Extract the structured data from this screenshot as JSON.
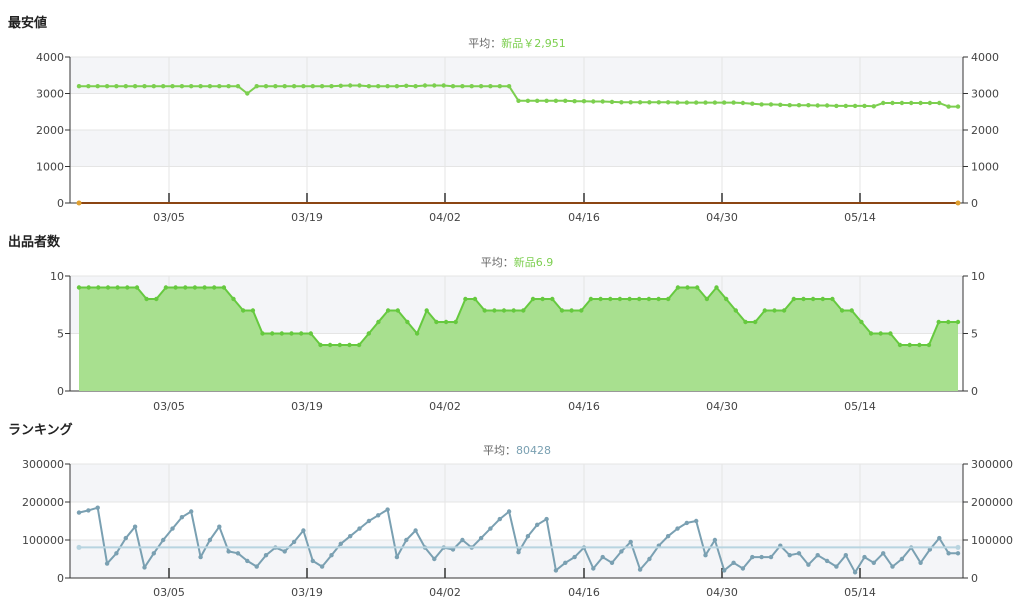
{
  "colors": {
    "price_line": "#7ccf4f",
    "price_zero_line": "#8b4513",
    "price_zero_marker": "#e0a030",
    "sellers_line": "#66c93f",
    "sellers_fill": "#a8e08f",
    "rank_line": "#7aa0b2",
    "rank_avg_line": "#b8d4e0",
    "band": "#f4f5f8",
    "grid": "#e5e5e5",
    "avg_value_green": "#7ccf4f",
    "avg_value_blue": "#7aa0b2"
  },
  "x_tick_labels": [
    "03/05",
    "03/19",
    "04/02",
    "04/16",
    "04/30",
    "05/14"
  ],
  "chart_data": [
    {
      "id": "price",
      "type": "line",
      "title": "最安値",
      "avg_prefix": "平均：",
      "avg_value": "新品￥2,951",
      "yticks": [
        "4000",
        "3000",
        "2000",
        "1000",
        "0"
      ],
      "ylim": [
        0,
        4000
      ],
      "x_range": [
        0,
        87
      ],
      "grid": true,
      "series": [
        {
          "values": [
            3200,
            3200,
            3200,
            3200,
            3200,
            3200,
            3200,
            3200,
            3200,
            3200,
            3200,
            3200,
            3200,
            3200,
            3200,
            3200,
            3200,
            3200,
            3000,
            3200,
            3200,
            3200,
            3200,
            3200,
            3200,
            3200,
            3200,
            3200,
            3210,
            3220,
            3220,
            3200,
            3200,
            3200,
            3200,
            3210,
            3200,
            3220,
            3220,
            3220,
            3200,
            3200,
            3200,
            3200,
            3200,
            3200,
            3200,
            2800,
            2800,
            2800,
            2800,
            2800,
            2800,
            2790,
            2790,
            2780,
            2780,
            2770,
            2760,
            2760,
            2760,
            2760,
            2760,
            2760,
            2750,
            2750,
            2750,
            2750,
            2750,
            2750,
            2750,
            2740,
            2720,
            2700,
            2700,
            2690,
            2680,
            2680,
            2680,
            2670,
            2670,
            2660,
            2660,
            2660,
            2660,
            2650,
            2740,
            2740,
            2740,
            2740,
            2740,
            2740,
            2740,
            2640,
            2640
          ]
        },
        {
          "values": [
            0,
            0
          ]
        }
      ]
    },
    {
      "id": "sellers",
      "type": "area",
      "title": "出品者数",
      "avg_prefix": "平均：",
      "avg_value": "新品6.9",
      "yticks": [
        "10",
        "5",
        "0"
      ],
      "ylim": [
        0,
        10
      ],
      "x_range": [
        0,
        87
      ],
      "grid": true,
      "series": [
        {
          "values": [
            9,
            9,
            9,
            9,
            9,
            9,
            9,
            8,
            8,
            9,
            9,
            9,
            9,
            9,
            9,
            9,
            8,
            7,
            7,
            5,
            5,
            5,
            5,
            5,
            5,
            4,
            4,
            4,
            4,
            4,
            5,
            6,
            7,
            7,
            6,
            5,
            7,
            6,
            6,
            6,
            8,
            8,
            7,
            7,
            7,
            7,
            7,
            8,
            8,
            8,
            7,
            7,
            7,
            8,
            8,
            8,
            8,
            8,
            8,
            8,
            8,
            8,
            9,
            9,
            9,
            8,
            9,
            8,
            7,
            6,
            6,
            7,
            7,
            7,
            8,
            8,
            8,
            8,
            8,
            7,
            7,
            6,
            5,
            5,
            5,
            4,
            4,
            4,
            4,
            6,
            6,
            6
          ]
        }
      ]
    },
    {
      "id": "ranking",
      "type": "line",
      "title": "ランキング",
      "avg_prefix": "平均：",
      "avg_value": "80428",
      "avg_line_value": 80428,
      "yticks": [
        "300000",
        "200000",
        "100000",
        "0"
      ],
      "ylim": [
        0,
        300000
      ],
      "x_range": [
        0,
        87
      ],
      "grid": true,
      "series": [
        {
          "values": [
            172000,
            178000,
            185000,
            38000,
            65000,
            105000,
            135000,
            28000,
            65000,
            100000,
            130000,
            160000,
            175000,
            55000,
            100000,
            135000,
            70000,
            65000,
            45000,
            30000,
            60000,
            80000,
            70000,
            95000,
            125000,
            45000,
            30000,
            60000,
            90000,
            110000,
            130000,
            150000,
            165000,
            180000,
            55000,
            100000,
            125000,
            80000,
            50000,
            80000,
            75000,
            100000,
            80000,
            105000,
            130000,
            155000,
            175000,
            68000,
            110000,
            140000,
            155000,
            20000,
            40000,
            55000,
            80000,
            25000,
            55000,
            40000,
            70000,
            95000,
            22000,
            50000,
            85000,
            110000,
            130000,
            145000,
            150000,
            60000,
            100000,
            20000,
            40000,
            25000,
            55000,
            55000,
            55000,
            85000,
            60000,
            65000,
            35000,
            60000,
            45000,
            30000,
            60000,
            15000,
            55000,
            40000,
            65000,
            30000,
            50000,
            80000,
            40000,
            75000,
            105000,
            65000,
            65000
          ]
        }
      ]
    }
  ]
}
